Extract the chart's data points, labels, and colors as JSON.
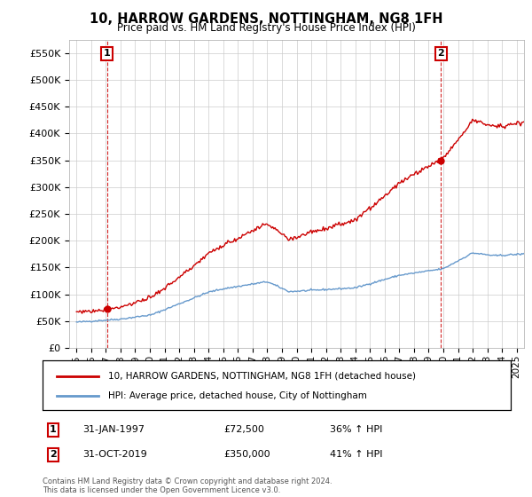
{
  "title": "10, HARROW GARDENS, NOTTINGHAM, NG8 1FH",
  "subtitle": "Price paid vs. HM Land Registry's House Price Index (HPI)",
  "legend_line1": "10, HARROW GARDENS, NOTTINGHAM, NG8 1FH (detached house)",
  "legend_line2": "HPI: Average price, detached house, City of Nottingham",
  "annotation1": {
    "label": "1",
    "date": "31-JAN-1997",
    "price": "£72,500",
    "hpi": "36% ↑ HPI"
  },
  "annotation2": {
    "label": "2",
    "date": "31-OCT-2019",
    "price": "£350,000",
    "hpi": "41% ↑ HPI"
  },
  "footnote": "Contains HM Land Registry data © Crown copyright and database right 2024.\nThis data is licensed under the Open Government Licence v3.0.",
  "ylim": [
    0,
    575000
  ],
  "yticks": [
    0,
    50000,
    100000,
    150000,
    200000,
    250000,
    300000,
    350000,
    400000,
    450000,
    500000,
    550000
  ],
  "ytick_labels": [
    "£0",
    "£50K",
    "£100K",
    "£150K",
    "£200K",
    "£250K",
    "£300K",
    "£350K",
    "£400K",
    "£450K",
    "£500K",
    "£550K"
  ],
  "sale1_x": 1997.08,
  "sale1_y": 72500,
  "sale2_x": 2019.83,
  "sale2_y": 350000,
  "red_color": "#cc0000",
  "blue_color": "#6699cc",
  "background_color": "#ffffff",
  "grid_color": "#cccccc",
  "xlim_left": 1994.5,
  "xlim_right": 2025.5
}
